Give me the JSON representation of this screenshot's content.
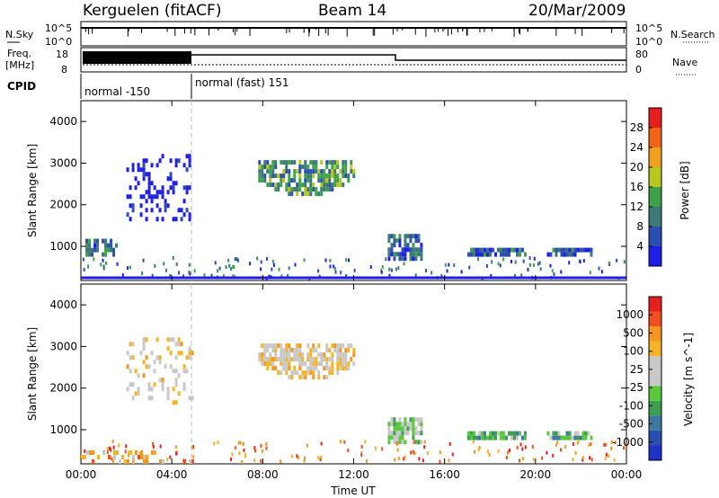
{
  "header": {
    "station": "Kerguelen (fitACF)",
    "beam": "Beam 14",
    "date": "20/Mar/2009"
  },
  "status_panels": {
    "nsky_label": "N.Sky",
    "nsearch_label": "N.Search",
    "noise_ticks": [
      "10^5",
      "10^0"
    ],
    "freq_label": "Freq.",
    "freq_unit": "[MHz]",
    "freq_ticks": [
      "18",
      "8"
    ],
    "nave_label": "Nave",
    "nave_ticks": [
      "80",
      "0"
    ],
    "cpid_label": "CPID",
    "cpid_modes": [
      "normal -150",
      "normal (fast) 151"
    ]
  },
  "colors": {
    "power_scale": [
      "#1e1ee6",
      "#2a4fb0",
      "#3c7878",
      "#3ea04a",
      "#b8c81e",
      "#f0a01e",
      "#f06414",
      "#e61e1e"
    ],
    "velocity_scale": [
      "#e61e1e",
      "#f0501e",
      "#f5961e",
      "#f5b428",
      "#c8c8c8",
      "#c8c8c8",
      "#5ac83c",
      "#3ca050",
      "#3c78a0",
      "#2a4fb0",
      "#1e32c8"
    ],
    "ground_scatter": "#c0c0c0"
  },
  "chart_data": [
    {
      "type": "heatmap",
      "panel": "power",
      "ylabel": "Slant Range [km]",
      "colorbar_label": "Power [dB]",
      "colorbar_ticks": [
        "28",
        "24",
        "20",
        "16",
        "12",
        "8",
        "4"
      ],
      "ylim": [
        180,
        4500
      ],
      "yticks": [
        "1000",
        "2000",
        "3000",
        "4000"
      ],
      "xlim_hours": [
        0,
        24
      ],
      "regions": [
        {
          "t0": 7.8,
          "t1": 12.0,
          "r0": 2100,
          "r1": 3000,
          "color_idx": 3,
          "shape": "arc"
        },
        {
          "t0": 2.0,
          "t1": 4.9,
          "r0": 1600,
          "r1": 3200,
          "color_idx": 0,
          "shape": "sparse"
        },
        {
          "t0": 13.5,
          "t1": 15.0,
          "r0": 650,
          "r1": 1200,
          "color_idx": 2,
          "shape": "patch"
        },
        {
          "t0": 17.0,
          "t1": 19.5,
          "r0": 750,
          "r1": 950,
          "color_idx": 2,
          "shape": "band"
        },
        {
          "t0": 20.5,
          "t1": 22.5,
          "r0": 750,
          "r1": 900,
          "color_idx": 2,
          "shape": "band"
        },
        {
          "t0": 0.2,
          "t1": 1.6,
          "r0": 750,
          "r1": 1150,
          "color_idx": 2,
          "shape": "patch"
        }
      ]
    },
    {
      "type": "heatmap",
      "panel": "velocity",
      "ylabel": "Slant Range [km]",
      "colorbar_label": "Velocity [m s^-1]",
      "colorbar_ticks": [
        "1000",
        "500",
        "100",
        "25",
        "-25",
        "-100",
        "-500",
        "-1000"
      ],
      "ylim": [
        180,
        4500
      ],
      "yticks": [
        "1000",
        "2000",
        "3000",
        "4000"
      ],
      "xlim_hours": [
        0,
        24
      ],
      "xticks": [
        "00:00",
        "04:00",
        "08:00",
        "12:00",
        "16:00",
        "20:00",
        "00:00"
      ],
      "xlabel": "Time UT",
      "regions": [
        {
          "t0": 7.8,
          "t1": 12.0,
          "r0": 2100,
          "r1": 3000,
          "color_idx": 4,
          "shape": "arc"
        },
        {
          "t0": 2.0,
          "t1": 4.9,
          "r0": 1600,
          "r1": 3200,
          "color_idx": 4,
          "shape": "sparse"
        },
        {
          "t0": 13.5,
          "t1": 15.0,
          "r0": 650,
          "r1": 1200,
          "color_idx": 6,
          "shape": "patch"
        },
        {
          "t0": 17.0,
          "t1": 19.5,
          "r0": 750,
          "r1": 950,
          "color_idx": 7,
          "shape": "band"
        },
        {
          "t0": 20.5,
          "t1": 22.5,
          "r0": 750,
          "r1": 900,
          "color_idx": 7,
          "shape": "band"
        },
        {
          "t0": 0.0,
          "t1": 4.9,
          "r0": 180,
          "r1": 500,
          "color_idx": 3,
          "shape": "sparse"
        }
      ]
    }
  ]
}
